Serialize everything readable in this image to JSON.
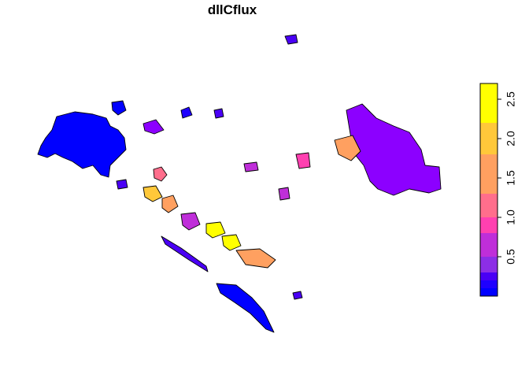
{
  "title": "dllCflux",
  "legend": {
    "tick_labels": [
      "0.5",
      "1.0",
      "1.5",
      "2.0",
      "2.5"
    ],
    "tick_values": [
      0.5,
      1.0,
      1.5,
      2.0,
      2.5
    ],
    "range": [
      0.0,
      2.7
    ],
    "breaks": [
      0.0,
      0.1,
      0.2,
      0.3,
      0.5,
      0.8,
      1.0,
      1.3,
      1.8,
      2.2,
      2.7
    ],
    "colors": [
      "#0000ff",
      "#1e00ff",
      "#4a00f5",
      "#8c2ee6",
      "#bf2ed9",
      "#ff40b0",
      "#ff6e8c",
      "#ffa060",
      "#ffc83a",
      "#ffff00"
    ]
  },
  "chart_data": {
    "type": "heatmap",
    "title": "dllCflux",
    "value_range": [
      0.0,
      2.7
    ],
    "legend_placement": "right"
  }
}
